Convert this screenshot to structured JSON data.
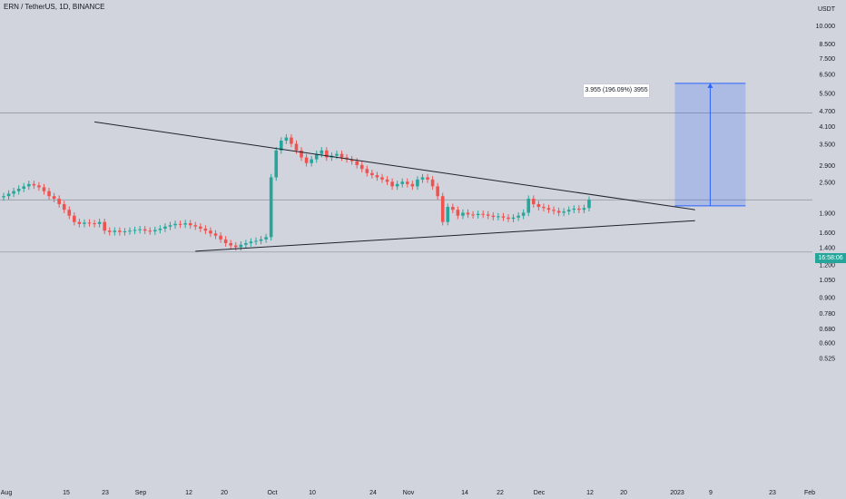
{
  "header": {
    "title": "ERN / TetherUS, 1D, BINANCE"
  },
  "price_axis": {
    "unit": "USDT",
    "ticks": [
      "10.000",
      "8.500",
      "7.500",
      "6.500",
      "5.500",
      "4.700",
      "4.100",
      "3.500",
      "2.900",
      "2.500",
      "1.900",
      "1.600",
      "1.400",
      "1.200",
      "1.050",
      "0.900",
      "0.780",
      "0.680",
      "0.600",
      "0.525"
    ],
    "current_price_tag": "16:58:06"
  },
  "time_axis": {
    "ticks": [
      "Aug",
      "15",
      "23",
      "Sep",
      "12",
      "20",
      "Oct",
      "10",
      "24",
      "Nov",
      "14",
      "22",
      "Dec",
      "12",
      "20",
      "2023",
      "9",
      "23",
      "Feb"
    ]
  },
  "measure": {
    "label": "3.955 (196.09%) 3955"
  },
  "colors": {
    "background": "#d1d4dc",
    "bullish": "#26a69a",
    "bearish": "#ef5350",
    "trendline": "#1e222d",
    "measure_fill": "#2962ff",
    "level_line": "#8a9199"
  },
  "chart_data": {
    "type": "candlestick",
    "scale": "log",
    "ylim": [
      0.5,
      12
    ],
    "price_levels": [
      1.34,
      4.6,
      2.13
    ],
    "trendlines": [
      {
        "name": "upper",
        "from": [
          "Aug 19",
          4.25
        ],
        "to": [
          "Dec 16",
          1.95
        ]
      },
      {
        "name": "lower",
        "from": [
          "Sep 08",
          1.35
        ],
        "to": [
          "Dec 16",
          1.77
        ]
      }
    ],
    "projection": {
      "from_date": "Dec 12",
      "to_date": "Dec 26",
      "low": 2.02,
      "high": 5.98
    },
    "closes": [
      2.2,
      2.25,
      2.3,
      2.35,
      2.4,
      2.45,
      2.42,
      2.38,
      2.3,
      2.2,
      2.15,
      2.05,
      1.95,
      1.85,
      1.75,
      1.72,
      1.74,
      1.73,
      1.72,
      1.75,
      1.62,
      1.6,
      1.62,
      1.6,
      1.61,
      1.62,
      1.63,
      1.64,
      1.62,
      1.61,
      1.63,
      1.65,
      1.68,
      1.7,
      1.72,
      1.71,
      1.73,
      1.7,
      1.68,
      1.65,
      1.62,
      1.58,
      1.55,
      1.5,
      1.45,
      1.42,
      1.4,
      1.43,
      1.45,
      1.47,
      1.48,
      1.5,
      1.53,
      2.6,
      3.3,
      3.6,
      3.7,
      3.5,
      3.3,
      3.1,
      2.95,
      3.05,
      3.2,
      3.3,
      3.1,
      3.15,
      3.2,
      3.1,
      3.05,
      3.0,
      2.9,
      2.8,
      2.7,
      2.65,
      2.6,
      2.55,
      2.5,
      2.4,
      2.45,
      2.5,
      2.45,
      2.4,
      2.55,
      2.6,
      2.55,
      2.4,
      2.2,
      1.75,
      2.0,
      1.95,
      1.85,
      1.9,
      1.87,
      1.86,
      1.88,
      1.87,
      1.85,
      1.83,
      1.84,
      1.82,
      1.8,
      1.82,
      1.85,
      1.9,
      2.15,
      2.05,
      2.0,
      1.98,
      1.95,
      1.93,
      1.9,
      1.92,
      1.95,
      1.97,
      1.95,
      1.98,
      2.13
    ]
  }
}
